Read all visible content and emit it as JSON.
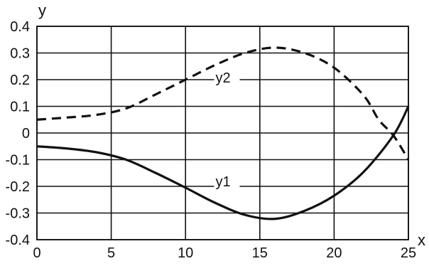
{
  "chart_data": {
    "type": "line",
    "title": "",
    "xlabel": "x",
    "ylabel": "y",
    "xlim": [
      0,
      25
    ],
    "ylim": [
      -0.4,
      0.4
    ],
    "grid": true,
    "legend": "none",
    "x_ticks": [
      0,
      5,
      10,
      15,
      20,
      25
    ],
    "y_ticks": [
      -0.4,
      -0.3,
      -0.2,
      -0.1,
      0,
      0.1,
      0.2,
      0.3,
      0.4
    ],
    "x_tick_labels": [
      "0",
      "5",
      "10",
      "15",
      "20",
      "25"
    ],
    "y_tick_labels": [
      "-0.4",
      "-0.3",
      "-0.2",
      "-0.1",
      "0",
      "0.1",
      "0.2",
      "0.3",
      "0.4"
    ],
    "series": [
      {
        "name": "y1",
        "line_style": "solid",
        "color": "#111111",
        "x": [
          0,
          2,
          4,
          6,
          8,
          10,
          12,
          14,
          16,
          18,
          20,
          22,
          24,
          25
        ],
        "values": [
          -0.05,
          -0.058,
          -0.072,
          -0.1,
          -0.15,
          -0.205,
          -0.262,
          -0.307,
          -0.322,
          -0.292,
          -0.235,
          -0.145,
          -0.008,
          0.1
        ]
      },
      {
        "name": "y2",
        "line_style": "dashed",
        "color": "#111111",
        "x": [
          0,
          2,
          4,
          6,
          8,
          10,
          12,
          14,
          16,
          18,
          20,
          22,
          23,
          24,
          25
        ],
        "values": [
          0.05,
          0.058,
          0.068,
          0.092,
          0.145,
          0.2,
          0.255,
          0.3,
          0.32,
          0.3,
          0.245,
          0.14,
          0.05,
          -0.01,
          -0.1
        ]
      }
    ],
    "annotations": [
      {
        "text": "y2",
        "series": "y2",
        "x": 12.5,
        "y": 0.19
      },
      {
        "text": "y1",
        "series": "y1",
        "x": 12.5,
        "y": -0.2
      }
    ]
  }
}
